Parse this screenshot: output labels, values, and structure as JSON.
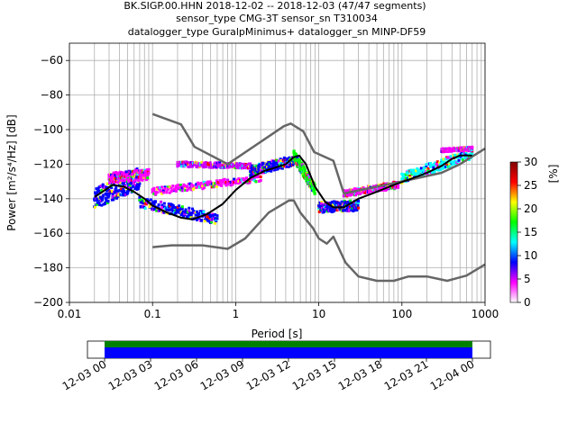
{
  "title_lines": [
    "BK.SIGP.00.HHN   2018-12-02 -- 2018-12-03  (47/47 segments)",
    "sensor_type CMG-3T sensor_sn T310034",
    "datalogger_type GuralpMinimus+ datalogger_sn MINP-DF59"
  ],
  "colorbar": {
    "label": "[%]",
    "ticks": [
      "0",
      "5",
      "10",
      "15",
      "20",
      "25",
      "30"
    ],
    "range": [
      0,
      30
    ],
    "stops": [
      "#ffffff",
      "#ff00ff",
      "#0000ff",
      "#00ffff",
      "#00ff00",
      "#ffff00",
      "#ff0000",
      "#800000"
    ]
  },
  "timeline": {
    "ticks": [
      "12-03 00",
      "12-03 03",
      "12-03 06",
      "12-03 09",
      "12-03 12",
      "12-03 15",
      "12-03 18",
      "12-03 21",
      "12-04 00"
    ],
    "coverage_colors": {
      "data": "#0000ff",
      "gaps_ok": "#008000"
    }
  },
  "chart_data": {
    "type": "line",
    "xlabel": "Period [s]",
    "ylabel": "Power [m²/s⁴/Hz] [dB]",
    "xscale": "log",
    "xlim": [
      0.01,
      1000
    ],
    "ylim": [
      -200,
      -50
    ],
    "xticks": [
      {
        "v": 0.01,
        "label": "0.01"
      },
      {
        "v": 0.1,
        "label": "0.1"
      },
      {
        "v": 1,
        "label": "1"
      },
      {
        "v": 10,
        "label": "10"
      },
      {
        "v": 100,
        "label": "100"
      },
      {
        "v": 1000,
        "label": "1000"
      }
    ],
    "yticks": [
      {
        "v": -60,
        "label": "−60"
      },
      {
        "v": -80,
        "label": "−80"
      },
      {
        "v": -100,
        "label": "−100"
      },
      {
        "v": -120,
        "label": "−120"
      },
      {
        "v": -140,
        "label": "−140"
      },
      {
        "v": -160,
        "label": "−160"
      },
      {
        "v": -180,
        "label": "−180"
      },
      {
        "v": -200,
        "label": "−200"
      }
    ],
    "grid": true,
    "series": [
      {
        "role": "high_noise_model",
        "color": "#666666",
        "points": [
          [
            0.1,
            -91
          ],
          [
            0.22,
            -97
          ],
          [
            0.32,
            -110
          ],
          [
            0.8,
            -120
          ],
          [
            3.8,
            -98
          ],
          [
            4.6,
            -96.5
          ],
          [
            6.5,
            -101
          ],
          [
            8.8,
            -113
          ],
          [
            15,
            -118
          ],
          [
            20,
            -137
          ],
          [
            100,
            -130
          ],
          [
            300,
            -125
          ],
          [
            500,
            -120
          ],
          [
            1000,
            -111
          ]
        ]
      },
      {
        "role": "low_noise_model",
        "color": "#666666",
        "points": [
          [
            0.1,
            -168
          ],
          [
            0.17,
            -167
          ],
          [
            0.4,
            -167
          ],
          [
            0.8,
            -169
          ],
          [
            1.3,
            -163
          ],
          [
            2.5,
            -148
          ],
          [
            4.4,
            -141
          ],
          [
            5,
            -141
          ],
          [
            6,
            -148
          ],
          [
            8.5,
            -157
          ],
          [
            10,
            -163
          ],
          [
            12.5,
            -166
          ],
          [
            15,
            -162
          ],
          [
            21,
            -177
          ],
          [
            30,
            -185
          ],
          [
            50,
            -187.5
          ],
          [
            80,
            -187.5
          ],
          [
            120,
            -185
          ],
          [
            200,
            -185
          ],
          [
            350,
            -187.5
          ],
          [
            600,
            -184.5
          ],
          [
            1000,
            -178
          ]
        ]
      },
      {
        "role": "median",
        "color": "#000000",
        "points": [
          [
            0.02,
            -139
          ],
          [
            0.025,
            -136
          ],
          [
            0.033,
            -132
          ],
          [
            0.045,
            -133
          ],
          [
            0.06,
            -136
          ],
          [
            0.08,
            -140
          ],
          [
            0.1,
            -144
          ],
          [
            0.15,
            -148
          ],
          [
            0.22,
            -151
          ],
          [
            0.3,
            -152
          ],
          [
            0.45,
            -149
          ],
          [
            0.7,
            -143
          ],
          [
            1,
            -135
          ],
          [
            1.5,
            -128
          ],
          [
            2.2,
            -124
          ],
          [
            3,
            -122
          ],
          [
            4,
            -120
          ],
          [
            5,
            -116
          ],
          [
            5.8,
            -115
          ],
          [
            7,
            -120
          ],
          [
            9,
            -133
          ],
          [
            12,
            -142
          ],
          [
            15,
            -145
          ],
          [
            20,
            -145
          ],
          [
            30,
            -140
          ],
          [
            50,
            -136
          ],
          [
            80,
            -132
          ],
          [
            120,
            -129
          ],
          [
            200,
            -125
          ],
          [
            300,
            -121
          ],
          [
            400,
            -117
          ],
          [
            500,
            -115
          ],
          [
            700,
            -115
          ]
        ]
      }
    ],
    "ppsd_density": [
      {
        "x_range": [
          0.02,
          0.07
        ],
        "y_center": [
          -140,
          -128
        ],
        "spread": 6,
        "color": "#0000ff"
      },
      {
        "x_range": [
          0.03,
          0.09
        ],
        "y_center": [
          -128,
          -126
        ],
        "spread": 3,
        "color": "#ff00ff"
      },
      {
        "x_range": [
          0.07,
          0.6
        ],
        "y_center": [
          -142,
          -152
        ],
        "spread": 3,
        "color": "#0000ff"
      },
      {
        "x_range": [
          0.2,
          1.5
        ],
        "y_center": [
          -120,
          -121
        ],
        "spread": 1.5,
        "color": "#cc00ff"
      },
      {
        "x_range": [
          0.1,
          2
        ],
        "y_center": [
          -136,
          -128
        ],
        "spread": 2,
        "color": "#ff00ff"
      },
      {
        "x_range": [
          1.5,
          5
        ],
        "y_center": [
          -124,
          -118
        ],
        "spread": 3,
        "color": "#0000ff"
      },
      {
        "x_range": [
          5,
          9
        ],
        "y_center": [
          -115,
          -135
        ],
        "spread": 3,
        "color": "#00ff00"
      },
      {
        "x_range": [
          10,
          30
        ],
        "y_center": [
          -145,
          -144
        ],
        "spread": 3,
        "color": "#0000ff"
      },
      {
        "x_range": [
          20,
          90
        ],
        "y_center": [
          -137,
          -132
        ],
        "spread": 2,
        "color": "#ff00ff"
      },
      {
        "x_range": [
          100,
          700
        ],
        "y_center": [
          -128,
          -114
        ],
        "spread": 3,
        "color": "#00ffff"
      },
      {
        "x_range": [
          300,
          700
        ],
        "y_center": [
          -112,
          -111
        ],
        "spread": 1,
        "color": "#ff00ff"
      }
    ]
  }
}
